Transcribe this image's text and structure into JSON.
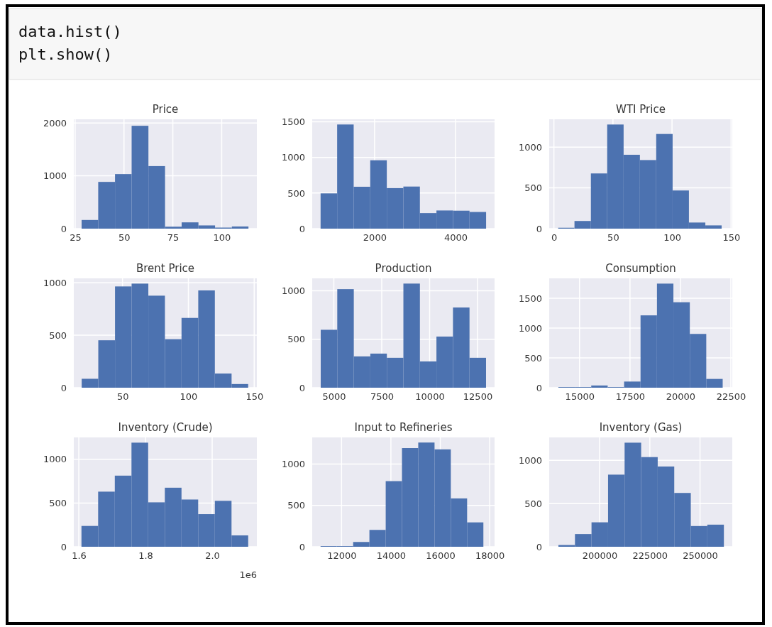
{
  "chart_data": [
    {
      "type": "histogram",
      "title": "Price",
      "annotations": [
        "data.hist()",
        "plt.show()"
      ],
      "color": "#4c72b0",
      "grid": true,
      "bins": [
        28.3,
        36.8,
        45.4,
        53.9,
        62.5,
        71.0,
        79.5,
        88.1,
        96.6,
        105.2,
        113.7
      ],
      "values": [
        164,
        885,
        1033,
        1947,
        1184,
        37,
        119,
        61,
        20,
        41
      ],
      "xlim": [
        24.3,
        118
      ],
      "ylim": [
        0,
        2070
      ],
      "xticks": [
        25,
        50,
        75,
        100
      ],
      "yticks": [
        0,
        1000,
        2000
      ]
    },
    {
      "type": "histogram",
      "color": "#4c72b0",
      "grid": true,
      "bins": [
        667,
        1076,
        1484,
        1893,
        2302,
        2711,
        3119,
        3528,
        3937,
        4345,
        4754
      ],
      "values": [
        495,
        1462,
        588,
        960,
        569,
        591,
        218,
        255,
        252,
        234
      ],
      "xlim": [
        460,
        4963
      ],
      "ylim": [
        0,
        1535
      ],
      "xticks": [
        2000,
        4000
      ],
      "yticks": [
        0,
        500,
        1000,
        1500
      ]
    },
    {
      "type": "histogram",
      "title": "WTI Price",
      "color": "#4c72b0",
      "grid": true,
      "bins": [
        3.6,
        17.4,
        31.3,
        45.1,
        59.0,
        72.8,
        86.6,
        100.5,
        114.3,
        128.2,
        142.0
      ],
      "values": [
        11,
        94,
        677,
        1277,
        906,
        841,
        1161,
        468,
        75,
        40
      ],
      "xlim": [
        -4,
        151
      ],
      "ylim": [
        0,
        1341
      ],
      "xticks": [
        0,
        50,
        100,
        150
      ],
      "yticks": [
        0,
        500,
        1000
      ]
    },
    {
      "type": "histogram",
      "title": "Brent Price",
      "color": "#4c72b0",
      "grid": true,
      "bins": [
        19.0,
        31.6,
        44.3,
        56.9,
        69.6,
        82.2,
        94.8,
        107.5,
        120.1,
        132.8,
        145.4
      ],
      "values": [
        85,
        452,
        965,
        992,
        877,
        462,
        665,
        927,
        135,
        35
      ],
      "xlim": [
        13,
        152
      ],
      "ylim": [
        0,
        1042
      ],
      "xticks": [
        50,
        100,
        150
      ],
      "yticks": [
        0,
        500,
        1000
      ]
    },
    {
      "type": "histogram",
      "title": "Production",
      "color": "#4c72b0",
      "grid": true,
      "bins": [
        4315,
        5178,
        6041,
        6904,
        7767,
        8630,
        9492,
        10355,
        11218,
        12081,
        12944
      ],
      "values": [
        598,
        1018,
        323,
        352,
        309,
        1075,
        271,
        528,
        828,
        309
      ],
      "xlim": [
        3870,
        13389
      ],
      "ylim": [
        0,
        1129
      ],
      "xticks": [
        5000,
        7500,
        10000,
        12500
      ],
      "yticks": [
        0,
        500,
        1000
      ]
    },
    {
      "type": "histogram",
      "title": "Consumption",
      "color": "#4c72b0",
      "grid": true,
      "bins": [
        13950,
        14765,
        15579,
        16394,
        17208,
        18023,
        18837,
        19652,
        20466,
        21281,
        22095
      ],
      "values": [
        11,
        11,
        37,
        11,
        103,
        1212,
        1744,
        1432,
        901,
        147
      ],
      "xlim": [
        13495,
        22570
      ],
      "ylim": [
        0,
        1832
      ],
      "xticks": [
        15000,
        17500,
        20000,
        22500
      ],
      "yticks": [
        0,
        500,
        1000,
        1500
      ]
    },
    {
      "type": "histogram",
      "title": "Inventory (Crude)",
      "xlabel": "1e6",
      "color": "#4c72b0",
      "grid": true,
      "bins": [
        1.608,
        1.658,
        1.708,
        1.758,
        1.808,
        1.858,
        1.908,
        1.958,
        2.008,
        2.058,
        2.108
      ],
      "values": [
        238,
        630,
        813,
        1190,
        508,
        675,
        540,
        373,
        525,
        130
      ],
      "xlim": [
        1.585,
        2.134
      ],
      "ylim": [
        0,
        1250
      ],
      "xticks": [
        1.6,
        1.8,
        {
          "value": 2.0,
          "label": "2.0"
        }
      ],
      "yticks": [
        0,
        500,
        1000
      ]
    },
    {
      "type": "histogram",
      "title": "Input to Refineries",
      "color": "#4c72b0",
      "grid": true,
      "bins": [
        11151,
        11810,
        12470,
        13129,
        13789,
        14448,
        15107,
        15767,
        16426,
        17086,
        17745
      ],
      "values": [
        8,
        8,
        58,
        204,
        794,
        1194,
        1261,
        1178,
        585,
        295
      ],
      "xlim": [
        10812,
        18198
      ],
      "ylim": [
        0,
        1323
      ],
      "xticks": [
        12000,
        14000,
        16000,
        18000
      ],
      "yticks": [
        0,
        500,
        1000
      ]
    },
    {
      "type": "histogram",
      "title": "Inventory (Gas)",
      "color": "#4c72b0",
      "grid": true,
      "bins": [
        179490,
        187729,
        195968,
        204207,
        212446,
        220685,
        228924,
        237163,
        245402,
        253641,
        261880
      ],
      "values": [
        20,
        147,
        283,
        835,
        1205,
        1038,
        929,
        623,
        240,
        256
      ],
      "xlim": [
        174900,
        266050
      ],
      "ylim": [
        0,
        1266
      ],
      "xticks": [
        200000,
        225000,
        250000
      ],
      "yticks": [
        0,
        500,
        1000
      ]
    }
  ]
}
